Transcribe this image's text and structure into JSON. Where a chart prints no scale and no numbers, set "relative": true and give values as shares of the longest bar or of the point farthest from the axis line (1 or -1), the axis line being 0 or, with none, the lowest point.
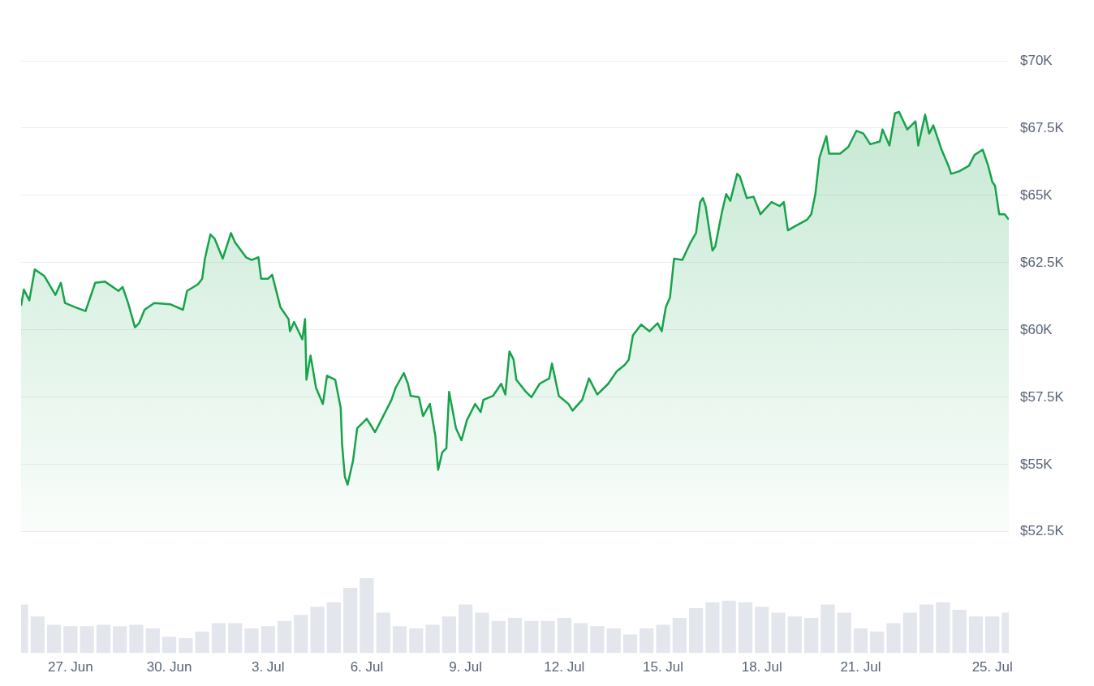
{
  "chart_data": [
    {
      "type": "area",
      "color": "#16a34a",
      "grid": "y",
      "tick_labels": "y",
      "xlim": [
        "--06-25T12:00",
        "--07-25T12:00"
      ],
      "ylim": [
        52500,
        70000
      ],
      "yticks": [
        {
          "value": 52500,
          "label": "$52.5K"
        },
        {
          "value": 55000,
          "label": "$55K"
        },
        {
          "value": 57500,
          "label": "$57.5K"
        },
        {
          "value": 60000,
          "label": "$60K"
        },
        {
          "value": 62500,
          "label": "$62.5K"
        },
        {
          "value": 65000,
          "label": "$65K"
        },
        {
          "value": 67500,
          "label": "$67.5K"
        },
        {
          "value": 70000,
          "label": "$70K"
        }
      ],
      "x": [
        "--06-25T12:00",
        "--06-25T14:00",
        "--06-25T18:00",
        "--06-25T22:00",
        "--06-26T05:00",
        "--06-26T13:00",
        "--06-26T17:00",
        "--06-26T20:00",
        "--06-27T03:00",
        "--06-27T11:00",
        "--06-27T18:00",
        "--06-28T01:00",
        "--06-28T11:00",
        "--06-28T14:00",
        "--06-28T18:00",
        "--06-28T23:00",
        "--06-29T02:00",
        "--06-29T06:00",
        "--06-29T13:00",
        "--06-30T01:00",
        "--06-30T10:00",
        "--06-30T13:00",
        "--06-30T21:00",
        "--07-01T00:00",
        "--07-01T02:00",
        "--07-01T06:00",
        "--07-01T09:00",
        "--07-01T15:00",
        "--07-01T21:00",
        "--07-02T00:00",
        "--07-02T08:00",
        "--07-02T12:00",
        "--07-02T17:00",
        "--07-02T19:00",
        "--07-03T00:00",
        "--07-03T03:00",
        "--07-03T09:00",
        "--07-03T15:00",
        "--07-03T16:00",
        "--07-03T19:00",
        "--07-04T01:00",
        "--07-04T03:00",
        "--07-04T04:00",
        "--07-04T07:00",
        "--07-04T11:00",
        "--07-04T16:00",
        "--07-04T19:00",
        "--07-05T01:00",
        "--07-05T05:00",
        "--07-05T06:00",
        "--07-05T08:00",
        "--07-05T10:00",
        "--07-05T14:00",
        "--07-05T17:00",
        "--07-06T00:00",
        "--07-06T06:00",
        "--07-06T12:00",
        "--07-06T18:00",
        "--07-06T21:00",
        "--07-07T03:00",
        "--07-07T06:00",
        "--07-07T08:00",
        "--07-07T14:00",
        "--07-07T17:00",
        "--07-07T22:00",
        "--07-08T02:00",
        "--07-08T04:00",
        "--07-08T07:00",
        "--07-08T10:00",
        "--07-08T12:00",
        "--07-08T17:00",
        "--07-08T21:00",
        "--07-09T01:00",
        "--07-09T07:00",
        "--07-09T11:00",
        "--07-09T13:00",
        "--07-09T20:00",
        "--07-10T02:00",
        "--07-10T05:00",
        "--07-10T08:00",
        "--07-10T11:00",
        "--07-10T13:00",
        "--07-10T20:00",
        "--07-11T00:00",
        "--07-11T06:00",
        "--07-11T13:00",
        "--07-11T15:00",
        "--07-11T20:00",
        "--07-12T03:00",
        "--07-12T06:00",
        "--07-12T13:00",
        "--07-12T18:00",
        "--07-13T00:00",
        "--07-13T08:00",
        "--07-13T14:00",
        "--07-13T20:00",
        "--07-13T23:00",
        "--07-14T02:00",
        "--07-14T08:00",
        "--07-14T14:00",
        "--07-14T20:00",
        "--07-14T23:00",
        "--07-15T02:00",
        "--07-15T05:00",
        "--07-15T08:00",
        "--07-15T14:00",
        "--07-15T20:00",
        "--07-16T00:00",
        "--07-16T03:00",
        "--07-16T05:00",
        "--07-16T07:00",
        "--07-16T12:00",
        "--07-16T14:00",
        "--07-16T19:00",
        "--07-16T22:00",
        "--07-17T01:00",
        "--07-17T06:00",
        "--07-17T08:00",
        "--07-17T13:00",
        "--07-17T18:00",
        "--07-17T23:00",
        "--07-18T07:00",
        "--07-18T13:00",
        "--07-18T16:00",
        "--07-18T19:00",
        "--07-19T00:00",
        "--07-19T09:00",
        "--07-19T12:00",
        "--07-19T15:00",
        "--07-19T18:00",
        "--07-19T23:00",
        "--07-20T01:00",
        "--07-20T09:00",
        "--07-20T15:00",
        "--07-20T21:00",
        "--07-21T02:00",
        "--07-21T07:00",
        "--07-21T14:00",
        "--07-21T16:00",
        "--07-21T21:00",
        "--07-22T01:00",
        "--07-22T04:00",
        "--07-22T10:00",
        "--07-22T16:00",
        "--07-22T18:00",
        "--07-22T23:00",
        "--07-23T02:00",
        "--07-23T05:00",
        "--07-23T11:00",
        "--07-23T16:00",
        "--07-23T18:00",
        "--07-24T00:00",
        "--07-24T07:00",
        "--07-24T11:00",
        "--07-24T17:00",
        "--07-24T21:00",
        "--07-25T00:00",
        "--07-25T02:00",
        "--07-25T05:00",
        "--07-25T09:00",
        "--07-25T12:00"
      ],
      "values": [
        60900,
        61500,
        61100,
        62250,
        62000,
        61300,
        61750,
        61000,
        60850,
        60700,
        61750,
        61800,
        61450,
        61600,
        61000,
        60100,
        60250,
        60750,
        61000,
        60950,
        60750,
        61450,
        61700,
        61900,
        62650,
        63550,
        63400,
        62650,
        63600,
        63250,
        62700,
        62600,
        62700,
        61900,
        61900,
        62050,
        60850,
        60400,
        59950,
        60300,
        59650,
        60400,
        58150,
        59050,
        57850,
        57250,
        58300,
        58150,
        57100,
        55750,
        54550,
        54250,
        55150,
        56350,
        56700,
        56200,
        56800,
        57400,
        57850,
        58400,
        58000,
        57550,
        57500,
        56800,
        57250,
        56050,
        54800,
        55450,
        55600,
        57700,
        56350,
        55900,
        56650,
        57250,
        56950,
        57400,
        57550,
        58000,
        57600,
        59200,
        58900,
        58150,
        57700,
        57500,
        58000,
        58200,
        58750,
        57550,
        57250,
        57000,
        57400,
        58200,
        57600,
        58000,
        58450,
        58700,
        58900,
        59800,
        60200,
        59950,
        60250,
        59950,
        60850,
        61200,
        62650,
        62600,
        63250,
        63600,
        64750,
        64900,
        64600,
        62950,
        63100,
        64400,
        65050,
        64800,
        65800,
        65700,
        64900,
        64950,
        64300,
        64750,
        64600,
        64750,
        63700,
        63850,
        64100,
        64300,
        65050,
        66400,
        67200,
        66550,
        66550,
        66800,
        67400,
        67300,
        66900,
        67000,
        67450,
        66850,
        68050,
        68100,
        67450,
        67750,
        66850,
        68000,
        67300,
        67600,
        66700,
        66100,
        65800,
        65900,
        66100,
        66500,
        66700,
        66100,
        65500,
        65350,
        64300,
        64300,
        64100
      ]
    },
    {
      "type": "bar",
      "relative": true,
      "color": "#e3e6ec",
      "tick_labels": "x",
      "xlim": [
        "--06-25T12:00",
        "--07-25T12:00"
      ],
      "xticks": [
        {
          "value": "--06-27",
          "label": "27. Jun"
        },
        {
          "value": "--06-30",
          "label": "30. Jun"
        },
        {
          "value": "--07-03",
          "label": "3. Jul"
        },
        {
          "value": "--07-06",
          "label": "6. Jul"
        },
        {
          "value": "--07-09",
          "label": "9. Jul"
        },
        {
          "value": "--07-12",
          "label": "12. Jul"
        },
        {
          "value": "--07-15",
          "label": "15. Jul"
        },
        {
          "value": "--07-18",
          "label": "18. Jul"
        },
        {
          "value": "--07-21",
          "label": "21. Jul"
        },
        {
          "value": "--07-25",
          "label": "25. Jul"
        }
      ],
      "x": [
        "--06-25T12:00",
        "--06-26T00:00",
        "--06-26T12:00",
        "--06-27T00:00",
        "--06-27T12:00",
        "--06-28T00:00",
        "--06-28T12:00",
        "--06-29T00:00",
        "--06-29T12:00",
        "--06-30T00:00",
        "--06-30T12:00",
        "--07-01T00:00",
        "--07-01T12:00",
        "--07-02T00:00",
        "--07-02T12:00",
        "--07-03T00:00",
        "--07-03T12:00",
        "--07-04T00:00",
        "--07-04T12:00",
        "--07-05T00:00",
        "--07-05T12:00",
        "--07-06T00:00",
        "--07-06T12:00",
        "--07-07T00:00",
        "--07-07T12:00",
        "--07-08T00:00",
        "--07-08T12:00",
        "--07-09T00:00",
        "--07-09T12:00",
        "--07-10T00:00",
        "--07-10T12:00",
        "--07-11T00:00",
        "--07-11T12:00",
        "--07-12T00:00",
        "--07-12T12:00",
        "--07-13T00:00",
        "--07-13T12:00",
        "--07-14T00:00",
        "--07-14T12:00",
        "--07-15T00:00",
        "--07-15T12:00",
        "--07-16T00:00",
        "--07-16T12:00",
        "--07-17T00:00",
        "--07-17T12:00",
        "--07-18T00:00",
        "--07-18T12:00",
        "--07-19T00:00",
        "--07-19T12:00",
        "--07-20T00:00",
        "--07-20T12:00",
        "--07-21T00:00",
        "--07-21T12:00",
        "--07-22T00:00",
        "--07-22T12:00",
        "--07-23T00:00",
        "--07-23T12:00",
        "--07-24T00:00",
        "--07-24T12:00",
        "--07-25T00:00",
        "--07-25T12:00"
      ],
      "values": [
        0.65,
        0.49,
        0.38,
        0.36,
        0.36,
        0.38,
        0.36,
        0.38,
        0.33,
        0.22,
        0.2,
        0.29,
        0.4,
        0.4,
        0.33,
        0.36,
        0.43,
        0.51,
        0.62,
        0.68,
        0.87,
        1,
        0.54,
        0.36,
        0.33,
        0.38,
        0.49,
        0.65,
        0.54,
        0.43,
        0.47,
        0.43,
        0.43,
        0.47,
        0.4,
        0.36,
        0.33,
        0.25,
        0.33,
        0.38,
        0.47,
        0.6,
        0.68,
        0.7,
        0.68,
        0.62,
        0.54,
        0.49,
        0.47,
        0.65,
        0.54,
        0.33,
        0.29,
        0.4,
        0.54,
        0.65,
        0.68,
        0.58,
        0.49,
        0.49,
        0.54
      ]
    }
  ]
}
